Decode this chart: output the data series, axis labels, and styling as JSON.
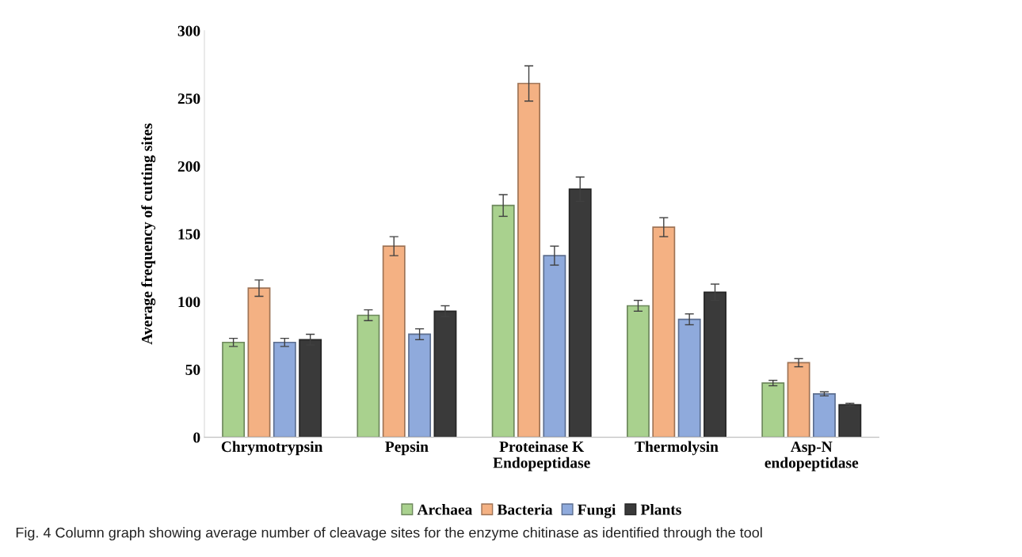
{
  "chart_data": {
    "type": "bar",
    "ylabel": "Average frequency of cutting sites",
    "categories": [
      "Chrymotrypsin",
      "Pepsin",
      "Proteinase K\nEndopeptidase",
      "Thermolysin",
      "Asp-N\nendopeptidase"
    ],
    "series": [
      {
        "name": "Archaea",
        "color": "#a9d18e",
        "values": [
          70,
          90,
          171,
          97,
          40
        ],
        "errors": [
          3,
          4,
          8,
          4,
          2
        ]
      },
      {
        "name": "Bacteria",
        "color": "#f4b183",
        "values": [
          110,
          141,
          261,
          155,
          55
        ],
        "errors": [
          6,
          7,
          13,
          7,
          3
        ]
      },
      {
        "name": "Fungi",
        "color": "#8faadc",
        "values": [
          70,
          76,
          134,
          87,
          32
        ],
        "errors": [
          3,
          4,
          7,
          4,
          1.5
        ]
      },
      {
        "name": "Plants",
        "color": "#3a3a3a",
        "values": [
          72,
          93,
          183,
          107,
          24
        ],
        "errors": [
          4,
          4,
          9,
          6,
          1
        ]
      }
    ],
    "ylim": [
      0,
      300
    ],
    "yticks": [
      0,
      50,
      100,
      150,
      200,
      250,
      300
    ],
    "grid": false,
    "legend": "bottom",
    "annotations": [
      "Fig. 4 Column graph showing average number of cleavage sites for the enzyme chitinase as identified through the tool"
    ]
  }
}
